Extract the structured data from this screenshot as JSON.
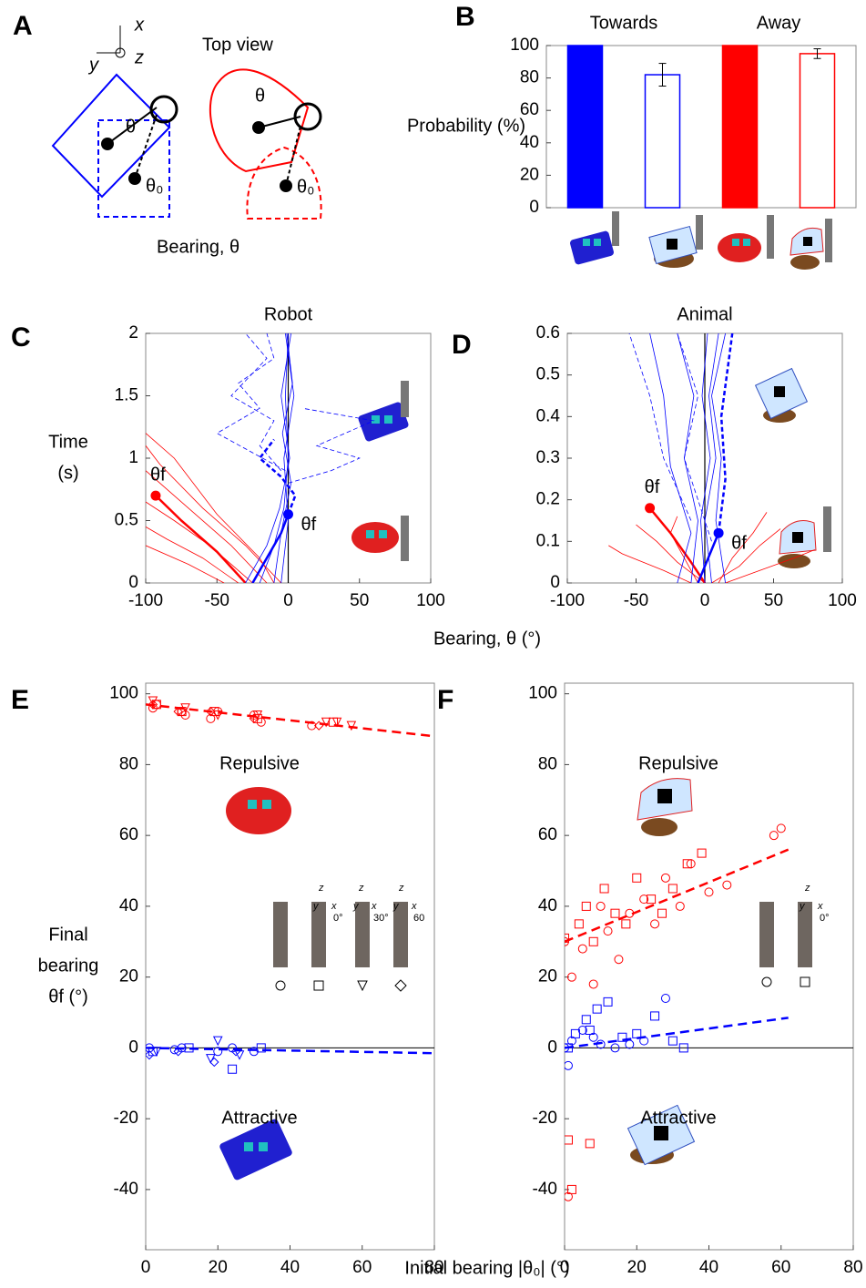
{
  "panel_a": {
    "label": "A",
    "axis_x": "x",
    "axis_y": "y",
    "axis_z": "z",
    "top_view": "Top view",
    "theta": "θ",
    "theta0": "θ₀",
    "caption": "Bearing, θ"
  },
  "chart_data": [
    {
      "type": "bar",
      "label": "B",
      "ylabel": "Probability (%)",
      "categories": [
        null,
        null,
        null,
        null
      ],
      "values": [
        100,
        82,
        100,
        95
      ],
      "errors": [
        0,
        7,
        0,
        3
      ],
      "face_colors": [
        "#0000ff",
        "#ffffff",
        "#ff0000",
        "#ffffff"
      ],
      "edge_colors": [
        "#0000ff",
        "#0000ff",
        "#ff0000",
        "#ff0000"
      ],
      "group_labels": [
        "Towards",
        "Away"
      ],
      "ylim": [
        0,
        100
      ],
      "yticks": [
        0,
        20,
        40,
        60,
        80,
        100
      ]
    },
    {
      "type": "line",
      "label": "C",
      "title": "Robot",
      "ylabel": [
        "Time",
        "(s)"
      ],
      "xlabel": "Bearing, θ (°)",
      "xlim": [
        -100,
        100
      ],
      "ylim": [
        0,
        2
      ],
      "xticks": [
        -100,
        -50,
        0,
        50,
        100
      ],
      "yticks": [
        0,
        0.5,
        1,
        1.5,
        2
      ],
      "reference_x": 0,
      "series": [
        {
          "color": "#ff0000",
          "width": 0.8,
          "style": "solid",
          "x": [
            -15,
            -40,
            -70,
            -100
          ],
          "values": [
            0,
            0.3,
            0.6,
            0.9
          ]
        },
        {
          "color": "#ff0000",
          "width": 0.8,
          "style": "solid",
          "x": [
            -25,
            -55,
            -80,
            -100
          ],
          "values": [
            0,
            0.3,
            0.5,
            0.65
          ]
        },
        {
          "color": "#ff0000",
          "width": 0.8,
          "style": "solid",
          "x": [
            -5,
            -30,
            -60,
            -90,
            -100
          ],
          "values": [
            0,
            0.3,
            0.6,
            0.95,
            1.1
          ]
        },
        {
          "color": "#ff0000",
          "width": 0.8,
          "style": "solid",
          "x": [
            -35,
            -60,
            -85,
            -100
          ],
          "values": [
            0,
            0.2,
            0.35,
            0.45
          ]
        },
        {
          "color": "#ff0000",
          "width": 0.8,
          "style": "solid",
          "x": [
            -10,
            -20,
            -50,
            -80,
            -100
          ],
          "values": [
            0,
            0.2,
            0.55,
            1,
            1.2
          ]
        },
        {
          "color": "#ff0000",
          "width": 0.8,
          "style": "solid",
          "x": [
            -45,
            -70,
            -100
          ],
          "values": [
            0,
            0.15,
            0.3
          ]
        },
        {
          "color": "#ff0000",
          "width": 2.5,
          "style": "solid",
          "x": [
            -30,
            -50,
            -75,
            -93
          ],
          "values": [
            0,
            0.25,
            0.5,
            0.7
          ]
        },
        {
          "color": "#0000ff",
          "width": 0.8,
          "style": "solid",
          "x": [
            -20,
            -10,
            -3,
            0,
            -2,
            0
          ],
          "values": [
            0,
            0.3,
            0.6,
            1,
            1.5,
            2
          ]
        },
        {
          "color": "#0000ff",
          "width": 0.8,
          "style": "solid",
          "x": [
            -10,
            -5,
            2,
            -4,
            3,
            -1
          ],
          "values": [
            0,
            0.4,
            0.8,
            1.2,
            1.6,
            2
          ]
        },
        {
          "color": "#0000ff",
          "width": 0.8,
          "style": "solid",
          "x": [
            -30,
            -15,
            -6,
            1,
            -5,
            2
          ],
          "values": [
            0,
            0.3,
            0.6,
            1,
            1.5,
            2
          ]
        },
        {
          "color": "#0000ff",
          "width": 0.8,
          "style": "solid",
          "x": [
            -5,
            0,
            -3,
            4,
            -2
          ],
          "values": [
            0,
            0.5,
            1,
            1.5,
            2
          ]
        },
        {
          "color": "#0000ff",
          "width": 0.8,
          "style": "dashed",
          "x": [
            -5,
            -20,
            -10,
            -40,
            -15,
            -30
          ],
          "values": [
            0.9,
            1.1,
            1.3,
            1.5,
            1.8,
            2
          ]
        },
        {
          "color": "#0000ff",
          "width": 0.8,
          "style": "dashed",
          "x": [
            0,
            30,
            50,
            20,
            60,
            10
          ],
          "values": [
            0.8,
            0.9,
            1,
            1.1,
            1.3,
            1.4
          ]
        },
        {
          "color": "#0000ff",
          "width": 0.8,
          "style": "dashed",
          "x": [
            -2,
            -50,
            -20,
            -35,
            -10,
            -15
          ],
          "values": [
            0.9,
            1.2,
            1.4,
            1.6,
            1.8,
            2
          ]
        },
        {
          "color": "#0000ff",
          "width": 2.5,
          "style": "solid",
          "x": [
            -25,
            -15,
            -5,
            0
          ],
          "values": [
            0,
            0.2,
            0.4,
            0.55
          ]
        },
        {
          "color": "#0000ff",
          "width": 2.5,
          "style": "dashed",
          "x": [
            0,
            5,
            -5,
            -20,
            -10
          ],
          "values": [
            0.55,
            0.7,
            0.85,
            1,
            1.15
          ]
        }
      ],
      "markers": [
        {
          "label": "θf",
          "color": "#ff0000",
          "x": -93,
          "y": 0.7
        },
        {
          "label": "θf",
          "color": "#0000ff",
          "x": 0,
          "y": 0.55
        }
      ]
    },
    {
      "type": "line",
      "label": "D",
      "title": "Animal",
      "xlim": [
        -100,
        100
      ],
      "ylim": [
        0,
        0.6
      ],
      "xticks": [
        -100,
        -50,
        0,
        50,
        100
      ],
      "yticks": [
        0,
        0.1,
        0.2,
        0.3,
        0.4,
        0.5,
        0.6
      ],
      "reference_x": 0,
      "series": [
        {
          "color": "#ff0000",
          "width": 0.8,
          "style": "solid",
          "x": [
            0,
            -20,
            -35,
            -50
          ],
          "values": [
            0,
            0.05,
            0.1,
            0.14
          ]
        },
        {
          "color": "#ff0000",
          "width": 0.8,
          "style": "solid",
          "x": [
            5,
            25,
            40,
            55
          ],
          "values": [
            0,
            0.04,
            0.09,
            0.13
          ]
        },
        {
          "color": "#ff0000",
          "width": 0.8,
          "style": "solid",
          "x": [
            -10,
            -30,
            -60,
            -70
          ],
          "values": [
            0,
            0.03,
            0.07,
            0.09
          ]
        },
        {
          "color": "#ff0000",
          "width": 0.8,
          "style": "solid",
          "x": [
            10,
            20,
            35,
            45
          ],
          "values": [
            0,
            0.06,
            0.12,
            0.17
          ]
        },
        {
          "color": "#ff0000",
          "width": 0.8,
          "style": "solid",
          "x": [
            -5,
            -15,
            -25,
            -20
          ],
          "values": [
            0,
            0.06,
            0.12,
            0.16
          ]
        },
        {
          "color": "#ff0000",
          "width": 0.8,
          "style": "solid",
          "x": [
            15,
            40,
            65,
            80
          ],
          "values": [
            0,
            0.03,
            0.06,
            0.08
          ]
        },
        {
          "color": "#ff0000",
          "width": 2.5,
          "style": "solid",
          "x": [
            0,
            -10,
            -25,
            -40
          ],
          "values": [
            0,
            0.05,
            0.12,
            0.18
          ]
        },
        {
          "color": "#0000ff",
          "width": 0.8,
          "style": "solid",
          "x": [
            -10,
            -5,
            -15,
            -8,
            -20
          ],
          "values": [
            0,
            0.15,
            0.3,
            0.45,
            0.6
          ]
        },
        {
          "color": "#0000ff",
          "width": 0.8,
          "style": "solid",
          "x": [
            5,
            0,
            8,
            3,
            10
          ],
          "values": [
            0,
            0.15,
            0.3,
            0.45,
            0.6
          ]
        },
        {
          "color": "#0000ff",
          "width": 0.8,
          "style": "solid",
          "x": [
            -20,
            -10,
            -25,
            -30,
            -40
          ],
          "values": [
            0,
            0.12,
            0.28,
            0.45,
            0.6
          ]
        },
        {
          "color": "#0000ff",
          "width": 0.8,
          "style": "solid",
          "x": [
            0,
            -3,
            4,
            -2,
            2
          ],
          "values": [
            0,
            0.15,
            0.3,
            0.45,
            0.6
          ]
        },
        {
          "color": "#0000ff",
          "width": 0.8,
          "style": "solid",
          "x": [
            15,
            8,
            12,
            5,
            15
          ],
          "values": [
            0,
            0.15,
            0.3,
            0.45,
            0.6
          ]
        },
        {
          "color": "#0000ff",
          "width": 0.8,
          "style": "dashed",
          "x": [
            -10,
            -30,
            -40,
            -55
          ],
          "values": [
            0.15,
            0.3,
            0.45,
            0.6
          ]
        },
        {
          "color": "#0000ff",
          "width": 0.8,
          "style": "dashed",
          "x": [
            5,
            -15,
            -5,
            -20
          ],
          "values": [
            0.1,
            0.3,
            0.45,
            0.6
          ]
        },
        {
          "color": "#0000ff",
          "width": 2.5,
          "style": "solid",
          "x": [
            -5,
            0,
            5,
            10
          ],
          "values": [
            0,
            0.04,
            0.08,
            0.12
          ]
        },
        {
          "color": "#0000ff",
          "width": 2.5,
          "style": "dashed",
          "x": [
            10,
            15,
            12,
            18,
            20
          ],
          "values": [
            0.12,
            0.25,
            0.4,
            0.55,
            0.6
          ]
        }
      ],
      "markers": [
        {
          "label": "θf",
          "color": "#ff0000",
          "x": -40,
          "y": 0.18
        },
        {
          "label": "θf",
          "color": "#0000ff",
          "x": 10,
          "y": 0.12
        }
      ]
    },
    {
      "type": "scatter",
      "label": "E",
      "ylabel": [
        "Final",
        "bearing",
        "θf (°)"
      ],
      "xlabel": "Initial bearing |θ₀| (°)",
      "xlim": [
        0,
        80
      ],
      "ylim": [
        -57,
        103
      ],
      "xticks": [
        0,
        20,
        40,
        60,
        80
      ],
      "yticks": [
        -40,
        -20,
        0,
        20,
        40,
        60,
        80,
        100
      ],
      "reference_y": 0,
      "annotations": [
        "Repulsive",
        "Attractive"
      ],
      "inset_labels": [
        "0°",
        "30°",
        "60"
      ],
      "inset_axes": [
        "z",
        "y",
        "x"
      ],
      "series": [
        {
          "color": "#ff0000",
          "marker": "circle",
          "x": [
            2,
            3,
            10,
            11,
            18,
            20,
            30,
            32,
            46
          ],
          "values": [
            96,
            97,
            95,
            94,
            93,
            95,
            94,
            92,
            91
          ]
        },
        {
          "color": "#ff0000",
          "marker": "square",
          "x": [
            3,
            10,
            19,
            31,
            52
          ],
          "values": [
            97,
            95,
            95,
            93,
            92
          ]
        },
        {
          "color": "#ff0000",
          "marker": "triangle",
          "x": [
            2,
            11,
            20,
            31,
            50,
            53,
            57
          ],
          "values": [
            98,
            96,
            94,
            94,
            92,
            92,
            91
          ]
        },
        {
          "color": "#ff0000",
          "marker": "diamond",
          "x": [
            2,
            9,
            18,
            30,
            48
          ],
          "values": [
            97,
            95,
            95,
            93,
            91
          ]
        },
        {
          "color": "#0000ff",
          "marker": "circle",
          "x": [
            1,
            8,
            10,
            20,
            24,
            30
          ],
          "values": [
            0,
            -0.5,
            0,
            -1,
            0,
            -1
          ]
        },
        {
          "color": "#0000ff",
          "marker": "square",
          "x": [
            2,
            12,
            24,
            32
          ],
          "values": [
            -1,
            0,
            -6,
            0
          ]
        },
        {
          "color": "#0000ff",
          "marker": "triangle",
          "x": [
            3,
            18,
            20,
            26
          ],
          "values": [
            -1,
            -3,
            2,
            -2
          ]
        },
        {
          "color": "#0000ff",
          "marker": "diamond",
          "x": [
            1,
            9,
            19,
            25
          ],
          "values": [
            -2,
            -1,
            -4,
            -1
          ]
        }
      ],
      "fits": [
        {
          "color": "#ff0000",
          "x": [
            0,
            80
          ],
          "values": [
            97,
            88
          ]
        },
        {
          "color": "#0000ff",
          "x": [
            0,
            80
          ],
          "values": [
            0,
            -1.5
          ]
        }
      ]
    },
    {
      "type": "scatter",
      "label": "F",
      "xlim": [
        0,
        80
      ],
      "ylim": [
        -57,
        103
      ],
      "xticks": [
        0,
        20,
        40,
        60,
        80
      ],
      "yticks": [
        -40,
        -20,
        0,
        20,
        40,
        60,
        80,
        100
      ],
      "reference_y": 0,
      "annotations": [
        "Repulsive",
        "Attractive"
      ],
      "inset_labels": [
        "0°"
      ],
      "inset_axes": [
        "z",
        "y",
        "x"
      ],
      "series": [
        {
          "color": "#ff0000",
          "marker": "circle",
          "x": [
            0,
            2,
            5,
            8,
            10,
            12,
            15,
            18,
            22,
            25,
            28,
            32,
            35,
            40,
            45,
            58,
            60,
            1
          ],
          "values": [
            30,
            20,
            28,
            18,
            40,
            33,
            25,
            38,
            42,
            35,
            48,
            40,
            52,
            44,
            46,
            60,
            62,
            -42
          ]
        },
        {
          "color": "#ff0000",
          "marker": "square",
          "x": [
            0,
            1,
            4,
            6,
            8,
            11,
            14,
            17,
            20,
            24,
            27,
            30,
            34,
            38,
            2,
            7
          ],
          "values": [
            31,
            -26,
            35,
            40,
            30,
            45,
            38,
            35,
            48,
            42,
            38,
            45,
            52,
            55,
            -40,
            -27
          ]
        },
        {
          "color": "#0000ff",
          "marker": "circle",
          "x": [
            0,
            2,
            5,
            8,
            10,
            14,
            18,
            22,
            28,
            1
          ],
          "values": [
            0,
            2,
            5,
            3,
            1,
            0,
            1,
            2,
            14,
            -5
          ]
        },
        {
          "color": "#0000ff",
          "marker": "square",
          "x": [
            1,
            3,
            6,
            7,
            9,
            12,
            16,
            20,
            25,
            30,
            33
          ],
          "values": [
            0,
            4,
            8,
            5,
            11,
            13,
            3,
            4,
            9,
            2,
            0
          ]
        }
      ],
      "fits": [
        {
          "color": "#ff0000",
          "x": [
            0,
            62
          ],
          "values": [
            30,
            56
          ]
        },
        {
          "color": "#0000ff",
          "x": [
            0,
            62
          ],
          "values": [
            0,
            8.5
          ]
        }
      ]
    }
  ]
}
